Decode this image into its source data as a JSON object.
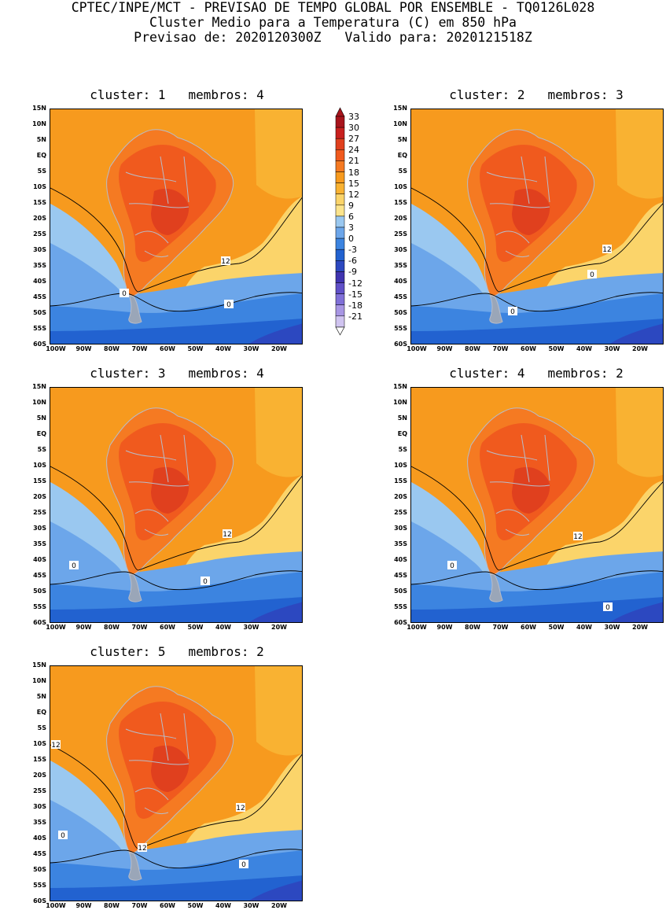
{
  "header": {
    "line1": "CPTEC/INPE/MCT - PREVISAO DE TEMPO GLOBAL POR ENSEMBLE - TQ0126L028",
    "line2": "Cluster Medio para a Temperatura (C) em 850 hPa",
    "line3": "Previsao de: 2020120300Z   Valido para: 2020121518Z"
  },
  "axes": {
    "y_ticks": [
      "15N",
      "10N",
      "5N",
      "EQ",
      "5S",
      "10S",
      "15S",
      "20S",
      "25S",
      "30S",
      "35S",
      "40S",
      "45S",
      "50S",
      "55S",
      "60S"
    ],
    "x_ticks": [
      "100W",
      "90W",
      "80W",
      "70W",
      "60W",
      "50W",
      "40W",
      "30W",
      "20W"
    ]
  },
  "colorbar": {
    "labels": [
      "33",
      "30",
      "27",
      "24",
      "21",
      "18",
      "15",
      "12",
      "9",
      "6",
      "3",
      "0",
      "-3",
      "-6",
      "-9",
      "-12",
      "-15",
      "-18",
      "-21"
    ],
    "colors": [
      "#a8141c",
      "#c8201e",
      "#e0401e",
      "#f05a1e",
      "#f57a22",
      "#f79a1e",
      "#f9b232",
      "#fbd46a",
      "#fce48c",
      "#9ac8f0",
      "#6ca6ea",
      "#3c84e0",
      "#2262d0",
      "#2c48c0",
      "#4034b0",
      "#6050c8",
      "#8070d8",
      "#a896e4",
      "#d0c4f0"
    ],
    "range": [
      -21,
      33
    ]
  },
  "panels": [
    {
      "title": "cluster: 1   membros: 4",
      "labels": [
        "12",
        "0",
        "0"
      ]
    },
    {
      "title": "cluster: 2   membros: 3",
      "labels": [
        "12",
        "0",
        "0"
      ]
    },
    {
      "title": "cluster: 3   membros: 4",
      "labels": [
        "12",
        "0",
        "0"
      ]
    },
    {
      "title": "cluster: 4   membros: 2",
      "labels": [
        "12",
        "0",
        "0"
      ]
    },
    {
      "title": "cluster: 5   membros: 2",
      "labels": [
        "12",
        "12",
        "12",
        "0",
        "0"
      ]
    }
  ]
}
